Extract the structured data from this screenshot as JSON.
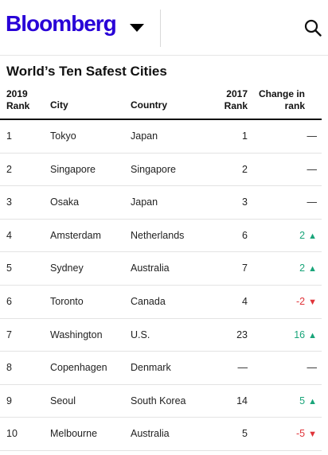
{
  "header": {
    "logo": "Bloomberg",
    "menu_icon": "caret-down-icon",
    "search_icon": "search-icon",
    "brand_color": "#2800d7"
  },
  "table": {
    "title": "World’s Ten Safest Cities",
    "columns": {
      "rank_line1": "2019",
      "rank_line2": "Rank",
      "city": "City",
      "country": "Country",
      "prev_line1": "2017",
      "prev_line2": "Rank",
      "change_line1": "Change in",
      "change_line2": "rank"
    },
    "up_color": "#1aa57a",
    "down_color": "#e0343a",
    "rows": [
      {
        "rank": "1",
        "city": "Tokyo",
        "country": "Japan",
        "prev": "1",
        "change": "—",
        "dir": "none",
        "arrow": ""
      },
      {
        "rank": "2",
        "city": "Singapore",
        "country": "Singapore",
        "prev": "2",
        "change": "—",
        "dir": "none",
        "arrow": ""
      },
      {
        "rank": "3",
        "city": "Osaka",
        "country": "Japan",
        "prev": "3",
        "change": "—",
        "dir": "none",
        "arrow": ""
      },
      {
        "rank": "4",
        "city": "Amsterdam",
        "country": "Netherlands",
        "prev": "6",
        "change": "2",
        "dir": "up",
        "arrow": "▲"
      },
      {
        "rank": "5",
        "city": "Sydney",
        "country": "Australia",
        "prev": "7",
        "change": "2",
        "dir": "up",
        "arrow": "▲"
      },
      {
        "rank": "6",
        "city": "Toronto",
        "country": "Canada",
        "prev": "4",
        "change": "-2",
        "dir": "down",
        "arrow": "▼"
      },
      {
        "rank": "7",
        "city": "Washington",
        "country": "U.S.",
        "prev": "23",
        "change": "16",
        "dir": "up",
        "arrow": "▲"
      },
      {
        "rank": "8",
        "city": "Copenhagen",
        "country": "Denmark",
        "prev": "—",
        "change": "—",
        "dir": "none",
        "arrow": ""
      },
      {
        "rank": "9",
        "city": "Seoul",
        "country": "South Korea",
        "prev": "14",
        "change": "5",
        "dir": "up",
        "arrow": "▲"
      },
      {
        "rank": "10",
        "city": "Melbourne",
        "country": "Australia",
        "prev": "5",
        "change": "-5",
        "dir": "down",
        "arrow": "▼"
      }
    ]
  }
}
